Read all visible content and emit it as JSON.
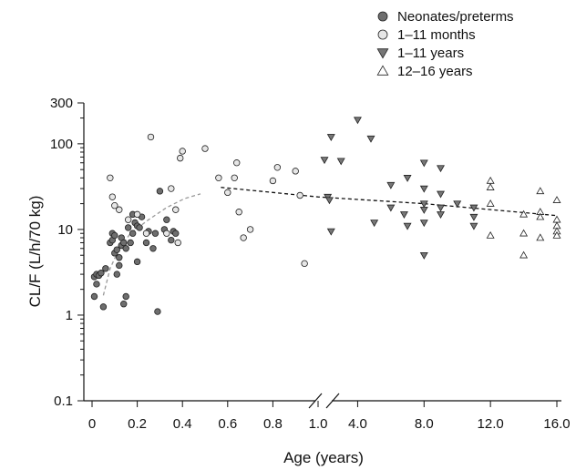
{
  "chart_data": {
    "type": "scatter",
    "title": "",
    "xlabel": "Age (years)",
    "ylabel": "CL/F (L/h/70 kg)",
    "y_scale": "log",
    "ylim": [
      0.1,
      300
    ],
    "y_ticks": [
      {
        "value": 0.1,
        "label": "0.1"
      },
      {
        "value": 1,
        "label": "1"
      },
      {
        "value": 10,
        "label": "10"
      },
      {
        "value": 100,
        "label": "100"
      },
      {
        "value": 300,
        "label": "300"
      }
    ],
    "x_axis": {
      "broken": true,
      "segments": [
        {
          "range": [
            0,
            1.0
          ],
          "ticks": [
            {
              "value": 0,
              "label": "0"
            },
            {
              "value": 0.2,
              "label": "0.2"
            },
            {
              "value": 0.4,
              "label": "0.4"
            },
            {
              "value": 0.6,
              "label": "0.6"
            },
            {
              "value": 0.8,
              "label": "0.8"
            },
            {
              "value": 1.0,
              "label": "1.0"
            }
          ]
        },
        {
          "range": [
            2,
            16
          ],
          "ticks": [
            {
              "value": 4,
              "label": "4.0"
            },
            {
              "value": 8,
              "label": "8.0"
            },
            {
              "value": 12,
              "label": "12.0"
            },
            {
              "value": 16,
              "label": "16.0"
            }
          ]
        }
      ]
    },
    "legend_position": "top-right",
    "grid": false,
    "series": [
      {
        "name": "Neonates/preterms",
        "marker": "circle",
        "fill": "#6e6e6e",
        "points": [
          [
            0.01,
            1.65
          ],
          [
            0.01,
            2.8
          ],
          [
            0.02,
            2.3
          ],
          [
            0.02,
            3.0
          ],
          [
            0.03,
            2.9
          ],
          [
            0.04,
            3.1
          ],
          [
            0.05,
            1.25
          ],
          [
            0.06,
            3.5
          ],
          [
            0.08,
            7.0
          ],
          [
            0.09,
            9.0
          ],
          [
            0.09,
            7.5
          ],
          [
            0.1,
            5.3
          ],
          [
            0.1,
            8.5
          ],
          [
            0.11,
            3.0
          ],
          [
            0.11,
            5.8
          ],
          [
            0.12,
            4.7
          ],
          [
            0.12,
            3.8
          ],
          [
            0.13,
            6.5
          ],
          [
            0.13,
            8.0
          ],
          [
            0.14,
            1.35
          ],
          [
            0.14,
            7.0
          ],
          [
            0.15,
            1.65
          ],
          [
            0.15,
            6.0
          ],
          [
            0.16,
            10.5
          ],
          [
            0.17,
            7.0
          ],
          [
            0.18,
            15.0
          ],
          [
            0.18,
            9.0
          ],
          [
            0.19,
            12.0
          ],
          [
            0.2,
            11.0
          ],
          [
            0.2,
            4.2
          ],
          [
            0.21,
            10.5
          ],
          [
            0.22,
            14.0
          ],
          [
            0.24,
            7.0
          ],
          [
            0.25,
            9.5
          ],
          [
            0.27,
            6.0
          ],
          [
            0.28,
            9.0
          ],
          [
            0.29,
            1.1
          ],
          [
            0.3,
            28.0
          ],
          [
            0.32,
            10.0
          ],
          [
            0.33,
            13.0
          ],
          [
            0.35,
            7.5
          ],
          [
            0.36,
            9.5
          ],
          [
            0.37,
            9.0
          ]
        ]
      },
      {
        "name": "1–11 months",
        "marker": "circle",
        "fill": "#e6e6e6",
        "points": [
          [
            0.08,
            40
          ],
          [
            0.09,
            24
          ],
          [
            0.1,
            19
          ],
          [
            0.12,
            17
          ],
          [
            0.16,
            13
          ],
          [
            0.2,
            15
          ],
          [
            0.24,
            9
          ],
          [
            0.26,
            120
          ],
          [
            0.33,
            9
          ],
          [
            0.35,
            30
          ],
          [
            0.37,
            17
          ],
          [
            0.38,
            7
          ],
          [
            0.39,
            68
          ],
          [
            0.4,
            82
          ],
          [
            0.5,
            88
          ],
          [
            0.56,
            40
          ],
          [
            0.6,
            27
          ],
          [
            0.63,
            40
          ],
          [
            0.64,
            60
          ],
          [
            0.65,
            16
          ],
          [
            0.67,
            8
          ],
          [
            0.7,
            10
          ],
          [
            0.8,
            37
          ],
          [
            0.82,
            53
          ],
          [
            0.9,
            48
          ],
          [
            0.92,
            25
          ],
          [
            0.94,
            4
          ]
        ]
      },
      {
        "name": "1–11 years",
        "marker": "triangle-down",
        "fill": "#777777",
        "points": [
          [
            2.0,
            65
          ],
          [
            2.2,
            24
          ],
          [
            2.3,
            22
          ],
          [
            2.4,
            9.5
          ],
          [
            2.4,
            120
          ],
          [
            3.0,
            63
          ],
          [
            4.0,
            190
          ],
          [
            4.8,
            115
          ],
          [
            5.0,
            12
          ],
          [
            6.0,
            33
          ],
          [
            6.0,
            18
          ],
          [
            6.8,
            15
          ],
          [
            7.0,
            40
          ],
          [
            7.0,
            11
          ],
          [
            8.0,
            60
          ],
          [
            8.0,
            30
          ],
          [
            8.0,
            20
          ],
          [
            8.0,
            17
          ],
          [
            8.0,
            12
          ],
          [
            8.0,
            5
          ],
          [
            9.0,
            52
          ],
          [
            9.0,
            26
          ],
          [
            9.0,
            18
          ],
          [
            9.0,
            15
          ],
          [
            10.0,
            20
          ],
          [
            11.0,
            18
          ],
          [
            11.0,
            14
          ],
          [
            11.0,
            11
          ]
        ]
      },
      {
        "name": "12–16 years",
        "marker": "triangle-up",
        "fill": "#ffffff",
        "points": [
          [
            12.0,
            37
          ],
          [
            12.0,
            31
          ],
          [
            12.0,
            20
          ],
          [
            12.0,
            8.5
          ],
          [
            14.0,
            15
          ],
          [
            14.0,
            9
          ],
          [
            14.0,
            5
          ],
          [
            15.0,
            28
          ],
          [
            15.0,
            16
          ],
          [
            15.0,
            14
          ],
          [
            15.0,
            8
          ],
          [
            16.0,
            22
          ],
          [
            16.0,
            13
          ],
          [
            16.0,
            11
          ],
          [
            16.0,
            9.5
          ],
          [
            16.0,
            8.5
          ]
        ]
      }
    ],
    "fits": [
      {
        "style": "dashed",
        "color": "#999999",
        "points": [
          [
            0.05,
            1.7
          ],
          [
            0.08,
            3.5
          ],
          [
            0.12,
            6.0
          ],
          [
            0.17,
            9.0
          ],
          [
            0.25,
            13.0
          ],
          [
            0.33,
            18.0
          ],
          [
            0.41,
            23.0
          ],
          [
            0.48,
            26.0
          ]
        ]
      },
      {
        "style": "dashed",
        "color": "#111111",
        "points": [
          [
            0.57,
            31.0
          ],
          [
            1.0,
            24.0
          ],
          [
            8.0,
            20.0
          ],
          [
            16.0,
            14.5
          ]
        ]
      }
    ]
  }
}
